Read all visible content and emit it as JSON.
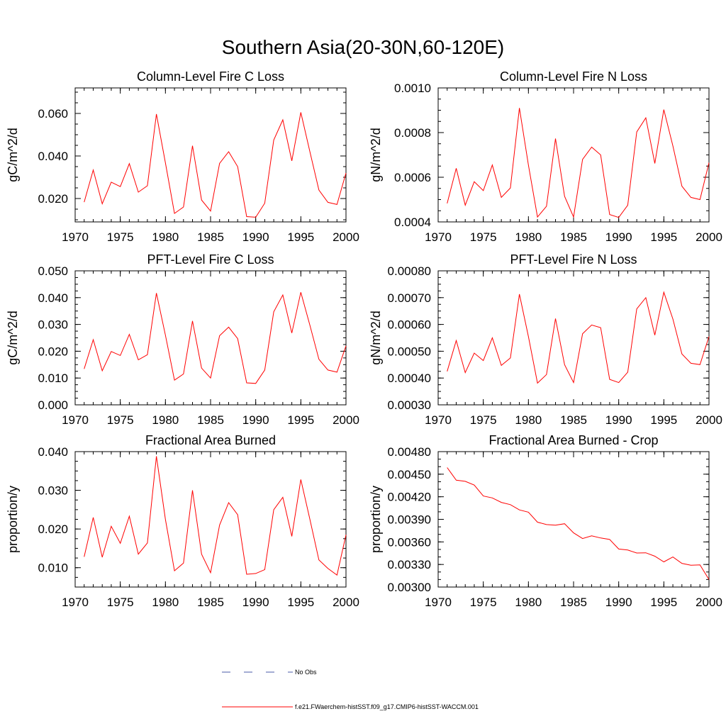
{
  "figure": {
    "title": "Southern Asia(20-30N,60-120E)",
    "legend": [
      {
        "label": "No Obs",
        "color": "#4a5ba8",
        "dash": true
      },
      {
        "label": "f.e21.FWaerchem-histSST.f09_g17.CMIP6-histSST-WACCM.001",
        "color": "#ff0000",
        "dash": false
      }
    ]
  },
  "chart_data": [
    {
      "type": "line",
      "title": "Column-Level Fire C Loss",
      "ylabel": "gC/m^2/d",
      "xlim": [
        1970,
        2000
      ],
      "ylim": [
        0.009,
        0.072
      ],
      "xticks": [
        1970,
        1975,
        1980,
        1985,
        1990,
        1995,
        2000
      ],
      "xtick_labels": [
        "1970",
        "1975",
        "1980",
        "1985",
        "1990",
        "1995",
        "2000"
      ],
      "yticks": [
        0.02,
        0.04,
        0.06
      ],
      "ytick_labels": [
        "0.020",
        "0.040",
        "0.060"
      ],
      "yminor": 0.005,
      "series": [
        {
          "color": "#ff0000",
          "x": [
            1971,
            1972,
            1973,
            1974,
            1975,
            1976,
            1977,
            1978,
            1979,
            1980,
            1981,
            1982,
            1983,
            1984,
            1985,
            1986,
            1987,
            1988,
            1989,
            1990,
            1991,
            1992,
            1993,
            1994,
            1995,
            1996,
            1997,
            1998,
            1999,
            2000
          ],
          "values": [
            0.0183,
            0.0334,
            0.0175,
            0.0277,
            0.0256,
            0.0364,
            0.023,
            0.026,
            0.0597,
            0.0368,
            0.013,
            0.016,
            0.0448,
            0.0193,
            0.0141,
            0.0365,
            0.042,
            0.035,
            0.0115,
            0.0112,
            0.0178,
            0.0475,
            0.057,
            0.0377,
            0.0605,
            0.042,
            0.024,
            0.0182,
            0.0172,
            0.032
          ]
        }
      ]
    },
    {
      "type": "line",
      "title": "Column-Level Fire N Loss",
      "ylabel": "gN/m^2/d",
      "xlim": [
        1970,
        2000
      ],
      "ylim": [
        0.0004,
        0.001
      ],
      "xticks": [
        1970,
        1975,
        1980,
        1985,
        1990,
        1995,
        2000
      ],
      "xtick_labels": [
        "1970",
        "1975",
        "1980",
        "1985",
        "1990",
        "1995",
        "2000"
      ],
      "yticks": [
        0.0004,
        0.0006,
        0.0008,
        0.001
      ],
      "ytick_labels": [
        "0.0004",
        "0.0006",
        "0.0008",
        "0.0010"
      ],
      "yminor": 5e-05,
      "series": [
        {
          "color": "#ff0000",
          "x": [
            1971,
            1972,
            1973,
            1974,
            1975,
            1976,
            1977,
            1978,
            1979,
            1980,
            1981,
            1982,
            1983,
            1984,
            1985,
            1986,
            1987,
            1988,
            1989,
            1990,
            1991,
            1992,
            1993,
            1994,
            1995,
            1996,
            1997,
            1998,
            1999,
            2000
          ],
          "values": [
            0.000483,
            0.00064,
            0.000475,
            0.00058,
            0.00054,
            0.000655,
            0.00051,
            0.000552,
            0.00091,
            0.000655,
            0.000422,
            0.00047,
            0.000773,
            0.000515,
            0.000422,
            0.00068,
            0.000735,
            0.0007,
            0.000433,
            0.00042,
            0.000475,
            0.000803,
            0.000866,
            0.000662,
            0.000903,
            0.00074,
            0.00056,
            0.00051,
            0.0005,
            0.000665
          ]
        }
      ]
    },
    {
      "type": "line",
      "title": "PFT-Level Fire C Loss",
      "ylabel": "gC/m^2/d",
      "xlim": [
        1970,
        2000
      ],
      "ylim": [
        0.0,
        0.05
      ],
      "xticks": [
        1970,
        1975,
        1980,
        1985,
        1990,
        1995,
        2000
      ],
      "xtick_labels": [
        "1970",
        "1975",
        "1980",
        "1985",
        "1990",
        "1995",
        "2000"
      ],
      "yticks": [
        0.0,
        0.01,
        0.02,
        0.03,
        0.04,
        0.05
      ],
      "ytick_labels": [
        "0.000",
        "0.010",
        "0.020",
        "0.030",
        "0.040",
        "0.050"
      ],
      "yminor": 0.0025,
      "series": [
        {
          "color": "#ff0000",
          "x": [
            1971,
            1972,
            1973,
            1974,
            1975,
            1976,
            1977,
            1978,
            1979,
            1980,
            1981,
            1982,
            1983,
            1984,
            1985,
            1986,
            1987,
            1988,
            1989,
            1990,
            1991,
            1992,
            1993,
            1994,
            1995,
            1996,
            1997,
            1998,
            1999,
            2000
          ],
          "values": [
            0.0134,
            0.0243,
            0.0127,
            0.0199,
            0.0184,
            0.0263,
            0.0168,
            0.0187,
            0.0417,
            0.026,
            0.0092,
            0.0115,
            0.0313,
            0.0137,
            0.01,
            0.0258,
            0.029,
            0.0247,
            0.0082,
            0.008,
            0.013,
            0.0347,
            0.041,
            0.0268,
            0.042,
            0.0297,
            0.017,
            0.013,
            0.0122,
            0.022
          ]
        }
      ]
    },
    {
      "type": "line",
      "title": "PFT-Level Fire N Loss",
      "ylabel": "gN/m^2/d",
      "xlim": [
        1970,
        2000
      ],
      "ylim": [
        0.0003,
        0.0008
      ],
      "xticks": [
        1970,
        1975,
        1980,
        1985,
        1990,
        1995,
        2000
      ],
      "xtick_labels": [
        "1970",
        "1975",
        "1980",
        "1985",
        "1990",
        "1995",
        "2000"
      ],
      "yticks": [
        0.0003,
        0.0004,
        0.0005,
        0.0006,
        0.0007,
        0.0008
      ],
      "ytick_labels": [
        "0.00030",
        "0.00040",
        "0.00050",
        "0.00060",
        "0.00070",
        "0.00080"
      ],
      "yminor": 2.5e-05,
      "series": [
        {
          "color": "#ff0000",
          "x": [
            1971,
            1972,
            1973,
            1974,
            1975,
            1976,
            1977,
            1978,
            1979,
            1980,
            1981,
            1982,
            1983,
            1984,
            1985,
            1986,
            1987,
            1988,
            1989,
            1990,
            1991,
            1992,
            1993,
            1994,
            1995,
            1996,
            1997,
            1998,
            1999,
            2000
          ],
          "values": [
            0.000425,
            0.00054,
            0.00042,
            0.000493,
            0.000465,
            0.00055,
            0.000447,
            0.000475,
            0.000713,
            0.000555,
            0.000381,
            0.000413,
            0.000622,
            0.00045,
            0.000383,
            0.000565,
            0.000598,
            0.000588,
            0.000395,
            0.000383,
            0.000422,
            0.000658,
            0.0007,
            0.00056,
            0.00072,
            0.00062,
            0.00049,
            0.000455,
            0.00045,
            0.000555
          ]
        }
      ]
    },
    {
      "type": "line",
      "title": "Fractional Area Burned",
      "ylabel": "proportion/y",
      "xlim": [
        1970,
        2000
      ],
      "ylim": [
        0.005,
        0.04
      ],
      "xticks": [
        1970,
        1975,
        1980,
        1985,
        1990,
        1995,
        2000
      ],
      "xtick_labels": [
        "1970",
        "1975",
        "1980",
        "1985",
        "1990",
        "1995",
        "2000"
      ],
      "yticks": [
        0.01,
        0.02,
        0.03,
        0.04
      ],
      "ytick_labels": [
        "0.010",
        "0.020",
        "0.030",
        "0.040"
      ],
      "yminor": 0.0025,
      "series": [
        {
          "color": "#ff0000",
          "x": [
            1971,
            1972,
            1973,
            1974,
            1975,
            1976,
            1977,
            1978,
            1979,
            1980,
            1981,
            1982,
            1983,
            1984,
            1985,
            1986,
            1987,
            1988,
            1989,
            1990,
            1991,
            1992,
            1993,
            1994,
            1995,
            1996,
            1997,
            1998,
            1999,
            2000
          ],
          "values": [
            0.0128,
            0.023,
            0.0127,
            0.0207,
            0.0163,
            0.0233,
            0.0135,
            0.0164,
            0.0388,
            0.0225,
            0.0092,
            0.0112,
            0.03,
            0.0135,
            0.0087,
            0.021,
            0.0268,
            0.0237,
            0.0083,
            0.0085,
            0.0095,
            0.025,
            0.0282,
            0.0181,
            0.0328,
            0.0225,
            0.012,
            0.0098,
            0.0081,
            0.0185
          ]
        }
      ]
    },
    {
      "type": "line",
      "title": "Fractional Area Burned - Crop",
      "ylabel": "proportion/y",
      "xlim": [
        1970,
        2000
      ],
      "ylim": [
        0.003,
        0.0048
      ],
      "xticks": [
        1970,
        1975,
        1980,
        1985,
        1990,
        1995,
        2000
      ],
      "xtick_labels": [
        "1970",
        "1975",
        "1980",
        "1985",
        "1990",
        "1995",
        "2000"
      ],
      "yticks": [
        0.003,
        0.0033,
        0.0036,
        0.0039,
        0.0042,
        0.0045,
        0.0048
      ],
      "ytick_labels": [
        "0.00300",
        "0.00330",
        "0.00360",
        "0.00390",
        "0.00420",
        "0.00450",
        "0.00480"
      ],
      "yminor": 0.0001,
      "series": [
        {
          "color": "#ff0000",
          "x": [
            1971,
            1972,
            1973,
            1974,
            1975,
            1976,
            1977,
            1978,
            1979,
            1980,
            1981,
            1982,
            1983,
            1984,
            1985,
            1986,
            1987,
            1988,
            1989,
            1990,
            1991,
            1992,
            1993,
            1994,
            1995,
            1996,
            1997,
            1998,
            1999,
            2000
          ],
          "values": [
            0.004588,
            0.00442,
            0.004405,
            0.004355,
            0.00421,
            0.004185,
            0.004125,
            0.004095,
            0.004025,
            0.003995,
            0.003862,
            0.00383,
            0.003822,
            0.003842,
            0.00372,
            0.003645,
            0.00368,
            0.003652,
            0.003632,
            0.003505,
            0.003492,
            0.003452,
            0.003455,
            0.00341,
            0.003335,
            0.0034,
            0.003315,
            0.00329,
            0.003295,
            0.0031
          ]
        }
      ]
    }
  ]
}
